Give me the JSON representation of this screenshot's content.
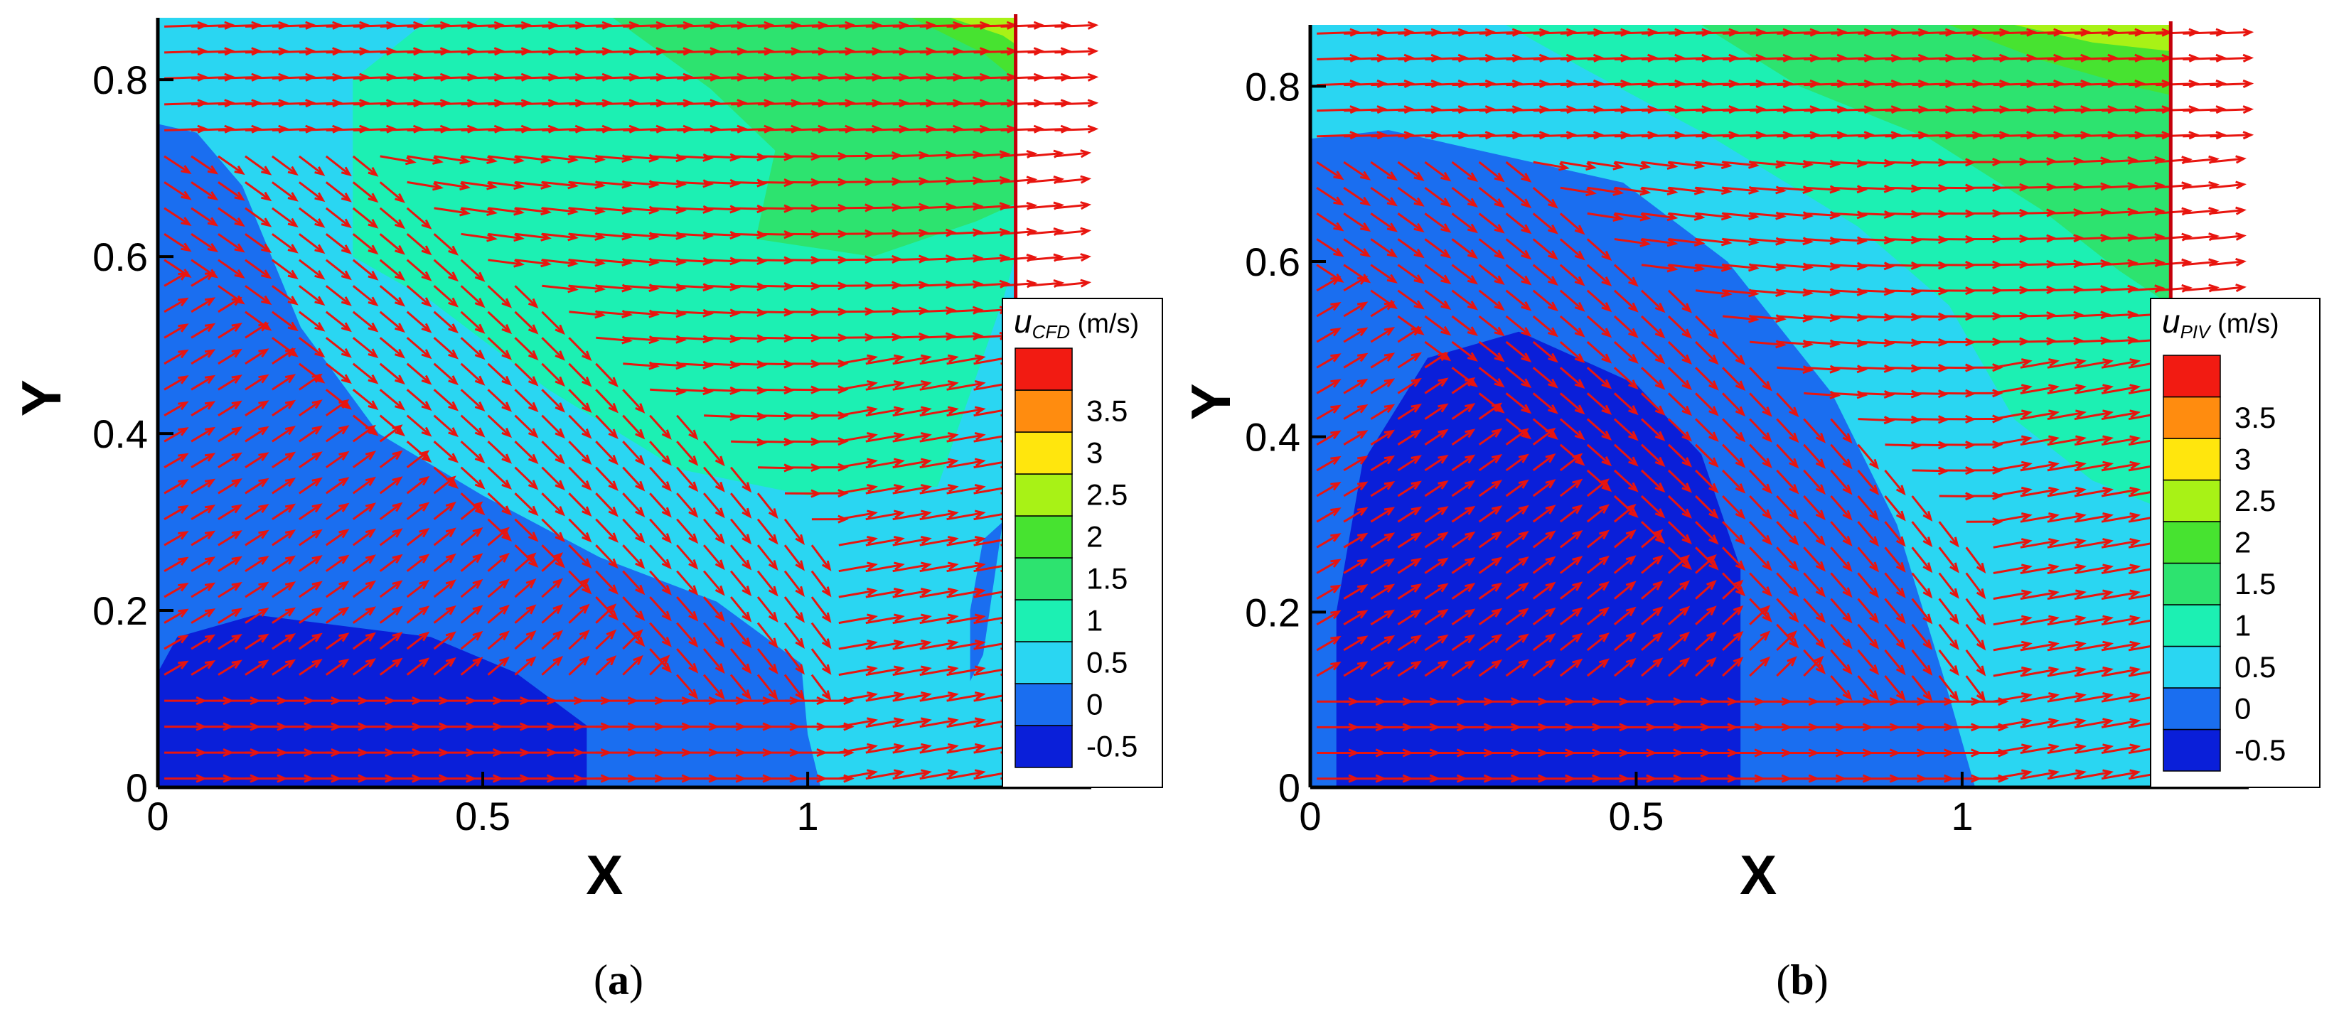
{
  "figure": {
    "panels": [
      {
        "id": "a",
        "caption": "a",
        "colorbar_symbol": "u",
        "colorbar_subscript": "CFD",
        "colorbar_unit": "(m/s)"
      },
      {
        "id": "b",
        "caption": "b",
        "colorbar_symbol": "u",
        "colorbar_subscript": "PIV",
        "colorbar_unit": "(m/s)"
      }
    ]
  },
  "chart_data": [
    {
      "type": "heatmap",
      "panel": "a",
      "xlabel": "X",
      "ylabel": "Y",
      "xlim": [
        0,
        1.42
      ],
      "ylim": [
        0,
        0.87
      ],
      "x_ticks": [
        "0",
        "0.5",
        "1"
      ],
      "y_ticks": [
        "0",
        "0.2",
        "0.4",
        "0.6",
        "0.8"
      ],
      "wall_x": 1.32,
      "colorbar_levels": [
        "-0.5",
        "0",
        "0.5",
        "1",
        "1.5",
        "2",
        "2.5",
        "3",
        "3.5"
      ],
      "level_colors": [
        "#0a1fd9",
        "#1a6ef0",
        "#2ad6f2",
        "#1cf0b3",
        "#2de36f",
        "#47e330",
        "#a8f216",
        "#ffe60d",
        "#ff8c0f",
        "#f21b12"
      ],
      "contour_regions": [
        {
          "level_index": 0,
          "points": [
            [
              0,
              0
            ],
            [
              0.66,
              0
            ],
            [
              0.66,
              0.07
            ],
            [
              0.55,
              0.13
            ],
            [
              0.42,
              0.17
            ],
            [
              0.15,
              0.195
            ],
            [
              0.03,
              0.17
            ],
            [
              0,
              0.13
            ]
          ]
        },
        {
          "level_index": 1,
          "points": [
            [
              0,
              0
            ],
            [
              1.02,
              0
            ],
            [
              1.0,
              0.06
            ],
            [
              0.99,
              0.14
            ],
            [
              0.86,
              0.21
            ],
            [
              0.68,
              0.26
            ],
            [
              0.5,
              0.33
            ],
            [
              0.34,
              0.4
            ],
            [
              0.22,
              0.52
            ],
            [
              0.13,
              0.68
            ],
            [
              0.06,
              0.74
            ],
            [
              0,
              0.75
            ]
          ]
        },
        {
          "level_index": 2,
          "points": [
            [
              0,
              0
            ],
            [
              1.32,
              0
            ],
            [
              1.32,
              0.87
            ],
            [
              0,
              0.87
            ]
          ]
        },
        {
          "level_index": 3,
          "points": [
            [
              0.42,
              0.87
            ],
            [
              0.3,
              0.8
            ],
            [
              0.3,
              0.6
            ],
            [
              0.42,
              0.55
            ],
            [
              0.6,
              0.45
            ],
            [
              0.8,
              0.36
            ],
            [
              1.0,
              0.33
            ],
            [
              1.2,
              0.34
            ],
            [
              1.3,
              0.55
            ],
            [
              1.32,
              0.6
            ],
            [
              1.32,
              0.87
            ]
          ]
        },
        {
          "level_index": 4,
          "points": [
            [
              0.7,
              0.87
            ],
            [
              0.85,
              0.79
            ],
            [
              0.95,
              0.72
            ],
            [
              0.92,
              0.62
            ],
            [
              1.1,
              0.6
            ],
            [
              1.26,
              0.64
            ],
            [
              1.32,
              0.66
            ],
            [
              1.32,
              0.87
            ]
          ]
        },
        {
          "level_index": 5,
          "points": [
            [
              1.16,
              0.87
            ],
            [
              1.27,
              0.83
            ],
            [
              1.32,
              0.8
            ],
            [
              1.32,
              0.87
            ]
          ]
        },
        {
          "level_index": 6,
          "points": [
            [
              1.22,
              0.87
            ],
            [
              1.3,
              0.85
            ],
            [
              1.32,
              0.84
            ],
            [
              1.32,
              0.87
            ]
          ]
        },
        {
          "level_index": 1,
          "points": [
            [
              1.25,
              0.12
            ],
            [
              1.27,
              0.15
            ],
            [
              1.3,
              0.3
            ],
            [
              1.27,
              0.28
            ],
            [
              1.25,
              0.2
            ]
          ]
        }
      ]
    },
    {
      "type": "heatmap",
      "panel": "b",
      "xlabel": "X",
      "ylabel": "Y",
      "xlim": [
        0,
        1.42
      ],
      "ylim": [
        0,
        0.87
      ],
      "x_ticks": [
        "0",
        "0.5",
        "1"
      ],
      "y_ticks": [
        "0",
        "0.2",
        "0.4",
        "0.6",
        "0.8"
      ],
      "wall_x": 1.32,
      "colorbar_levels": [
        "-0.5",
        "0",
        "0.5",
        "1",
        "1.5",
        "2",
        "2.5",
        "3",
        "3.5"
      ],
      "level_colors": [
        "#0a1fd9",
        "#1a6ef0",
        "#2ad6f2",
        "#1cf0b3",
        "#2de36f",
        "#47e330",
        "#a8f216",
        "#ffe60d",
        "#ff8c0f",
        "#f21b12"
      ],
      "contour_regions": [
        {
          "level_index": 0,
          "points": [
            [
              0.04,
              0
            ],
            [
              0.66,
              0
            ],
            [
              0.66,
              0.25
            ],
            [
              0.6,
              0.38
            ],
            [
              0.5,
              0.46
            ],
            [
              0.32,
              0.52
            ],
            [
              0.18,
              0.49
            ],
            [
              0.08,
              0.37
            ],
            [
              0.04,
              0.2
            ]
          ]
        },
        {
          "level_index": 1,
          "points": [
            [
              0,
              0
            ],
            [
              1.02,
              0
            ],
            [
              0.97,
              0.13
            ],
            [
              0.9,
              0.3
            ],
            [
              0.8,
              0.45
            ],
            [
              0.64,
              0.6
            ],
            [
              0.48,
              0.69
            ],
            [
              0.3,
              0.72
            ],
            [
              0.12,
              0.75
            ],
            [
              0,
              0.74
            ]
          ]
        },
        {
          "level_index": 2,
          "points": [
            [
              0,
              0
            ],
            [
              1.32,
              0
            ],
            [
              1.32,
              0.87
            ],
            [
              0,
              0.87
            ]
          ]
        },
        {
          "level_index": 3,
          "points": [
            [
              0.3,
              0.87
            ],
            [
              0.42,
              0.82
            ],
            [
              0.62,
              0.74
            ],
            [
              0.84,
              0.64
            ],
            [
              0.98,
              0.55
            ],
            [
              1.08,
              0.42
            ],
            [
              1.2,
              0.35
            ],
            [
              1.3,
              0.32
            ],
            [
              1.32,
              0.3
            ],
            [
              1.32,
              0.87
            ]
          ]
        },
        {
          "level_index": 4,
          "points": [
            [
              0.6,
              0.87
            ],
            [
              0.75,
              0.8
            ],
            [
              0.95,
              0.74
            ],
            [
              1.12,
              0.66
            ],
            [
              1.24,
              0.59
            ],
            [
              1.32,
              0.55
            ],
            [
              1.32,
              0.87
            ]
          ]
        },
        {
          "level_index": 5,
          "points": [
            [
              0.98,
              0.87
            ],
            [
              1.12,
              0.83
            ],
            [
              1.26,
              0.8
            ],
            [
              1.32,
              0.79
            ],
            [
              1.32,
              0.87
            ]
          ]
        },
        {
          "level_index": 6,
          "points": [
            [
              1.08,
              0.87
            ],
            [
              1.2,
              0.85
            ],
            [
              1.32,
              0.84
            ],
            [
              1.32,
              0.87
            ]
          ]
        }
      ]
    }
  ]
}
